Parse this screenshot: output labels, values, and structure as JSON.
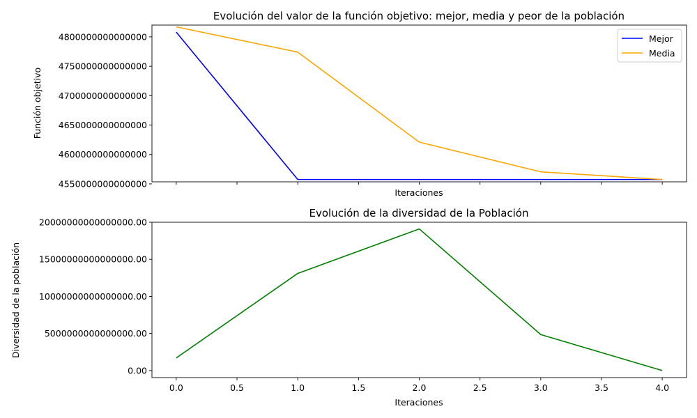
{
  "chart_data": [
    {
      "type": "line",
      "title": "Evolución del valor de la función objetivo: mejor, media y peor de la población",
      "xlabel": "Iteraciones",
      "ylabel": "Función objetivo",
      "x": [
        0,
        1,
        2,
        3,
        4
      ],
      "xlim": [
        -0.2,
        4.2
      ],
      "ylim": [
        4553500000000000,
        4820000000000000
      ],
      "y_ticks": [
        4550000000000000,
        4600000000000000,
        4650000000000000,
        4700000000000000,
        4750000000000000,
        4800000000000000
      ],
      "y_tick_labels": [
        "4550000000000000",
        "4600000000000000",
        "4650000000000000",
        "4700000000000000",
        "4750000000000000",
        "4800000000000000"
      ],
      "x_tick_labels_visible": false,
      "legend": "top-right",
      "grid": false,
      "series": [
        {
          "name": "Mejor",
          "color": "#0000ff",
          "values": [
            4808000000000000,
            4557500000000000,
            4557500000000000,
            4557500000000000,
            4557500000000000
          ]
        },
        {
          "name": "Media",
          "color": "#ffa500",
          "values": [
            4817000000000000,
            4774000000000000,
            4621000000000000,
            4570500000000000,
            4557500000000000
          ]
        }
      ]
    },
    {
      "type": "line",
      "title": "Evolución de la diversidad de la Población",
      "xlabel": "Iteraciones",
      "ylabel": "Diversidad de la población",
      "x": [
        0,
        1,
        2,
        3,
        4
      ],
      "xlim": [
        -0.2,
        4.2
      ],
      "ylim": [
        -950000000000000,
        20000000000000000
      ],
      "x_ticks": [
        0,
        0.5,
        1,
        1.5,
        2,
        2.5,
        3,
        3.5,
        4
      ],
      "x_tick_labels": [
        "0.0",
        "0.5",
        "1.0",
        "1.5",
        "2.0",
        "2.5",
        "3.0",
        "3.5",
        "4.0"
      ],
      "y_ticks": [
        0,
        5000000000000000,
        10000000000000000,
        15000000000000000,
        20000000000000000
      ],
      "y_tick_labels": [
        "0.00",
        "5000000000000000.00",
        "10000000000000000.00",
        "15000000000000000.00",
        "20000000000000000.00"
      ],
      "grid": false,
      "series": [
        {
          "color": "#008000",
          "values": [
            1700000000000000,
            13100000000000000,
            19100000000000000,
            4850000000000000,
            0
          ]
        }
      ]
    }
  ]
}
